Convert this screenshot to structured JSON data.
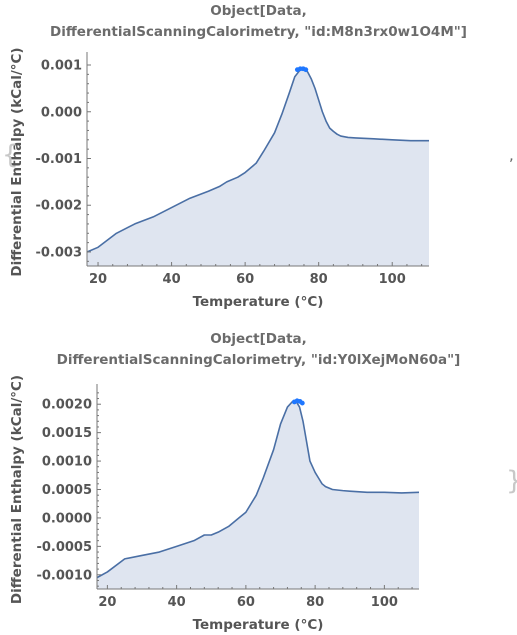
{
  "punctuation": {
    "left_brace": "{",
    "comma": ",",
    "right_brace": "}"
  },
  "chart_data": [
    {
      "type": "area",
      "title_line1": "Object[Data,",
      "title_line2": "DifferentialScanningCalorimetry, \"id:M8n3rx0w1O4M\"]",
      "xlabel": "Temperature  (°C)",
      "ylabel": "Differential Enthalpy  (kCal/°C)",
      "xlim": [
        17,
        110
      ],
      "ylim": [
        -0.0033,
        0.00115
      ],
      "xticks": [
        20,
        40,
        60,
        80,
        100
      ],
      "yticks": [
        -0.003,
        -0.002,
        -0.001,
        0.0,
        0.001
      ],
      "ytick_labels": [
        "-0.003",
        "-0.002",
        "-0.001",
        "0.000",
        "0.001"
      ],
      "line_color": "#4a6fa5",
      "fill_color": "#dfe5f0",
      "marker_color": "#1f77ff",
      "series": [
        {
          "x": [
            17,
            20,
            25,
            30,
            35,
            40,
            45,
            50,
            53,
            55,
            58,
            60,
            63,
            65,
            68,
            70,
            72,
            73.5,
            75,
            76,
            77,
            78,
            79,
            80,
            81,
            82,
            83,
            84,
            85,
            86,
            88,
            90,
            95,
            100,
            105,
            110
          ],
          "y": [
            -0.003,
            -0.0029,
            -0.0026,
            -0.0024,
            -0.00225,
            -0.00205,
            -0.00185,
            -0.0017,
            -0.0016,
            -0.0015,
            -0.0014,
            -0.0013,
            -0.0011,
            -0.00085,
            -0.00045,
            -5e-05,
            0.0004,
            0.00075,
            0.0009,
            0.00092,
            0.00085,
            0.0007,
            0.0005,
            0.00025,
            0.0,
            -0.0002,
            -0.00035,
            -0.00042,
            -0.00048,
            -0.00052,
            -0.00055,
            -0.00056,
            -0.00058,
            -0.0006,
            -0.00062,
            -0.00062
          ]
        }
      ],
      "peak_markers": {
        "x": [
          74.2,
          75.0,
          75.8,
          76.5
        ],
        "y": [
          0.0009,
          0.00092,
          0.00092,
          0.0009
        ]
      }
    },
    {
      "type": "area",
      "title_line1": "Object[Data,",
      "title_line2": "DifferentialScanningCalorimetry, \"id:Y0lXejMoN60a\"]",
      "xlabel": "Temperature  (°C)",
      "ylabel": "Differential Enthalpy  (kCal/°C)",
      "xlim": [
        17,
        110
      ],
      "ylim": [
        -0.00125,
        0.00225
      ],
      "xticks": [
        20,
        40,
        60,
        80,
        100
      ],
      "yticks": [
        -0.001,
        -0.0005,
        0.0,
        0.0005,
        0.001,
        0.0015,
        0.002
      ],
      "ytick_labels": [
        "-0.0010",
        "-0.0005",
        "0.0000",
        "0.0005",
        "0.0010",
        "0.0015",
        "0.0020"
      ],
      "line_color": "#4a6fa5",
      "fill_color": "#dfe5f0",
      "marker_color": "#1f77ff",
      "series": [
        {
          "x": [
            17,
            20,
            25,
            30,
            35,
            40,
            45,
            48,
            50,
            52,
            55,
            58,
            60,
            63,
            65,
            68,
            70,
            72,
            73.5,
            74.5,
            75.5,
            76.5,
            77.5,
            78.5,
            80,
            81,
            82,
            83,
            85,
            88,
            90,
            95,
            100,
            105,
            110
          ],
          "y": [
            -0.00105,
            -0.00095,
            -0.00072,
            -0.00066,
            -0.0006,
            -0.0005,
            -0.0004,
            -0.0003,
            -0.0003,
            -0.00025,
            -0.00015,
            0.0,
            0.0001,
            0.0004,
            0.0007,
            0.0012,
            0.00165,
            0.00195,
            0.00205,
            0.00205,
            0.00195,
            0.0017,
            0.00135,
            0.001,
            0.0008,
            0.0007,
            0.0006,
            0.00055,
            0.0005,
            0.00048,
            0.00047,
            0.00045,
            0.00045,
            0.00044,
            0.00045
          ]
        }
      ],
      "peak_markers": {
        "x": [
          74.0,
          74.8,
          75.6,
          76.3
        ],
        "y": [
          0.00204,
          0.00206,
          0.00205,
          0.00202
        ]
      }
    }
  ]
}
